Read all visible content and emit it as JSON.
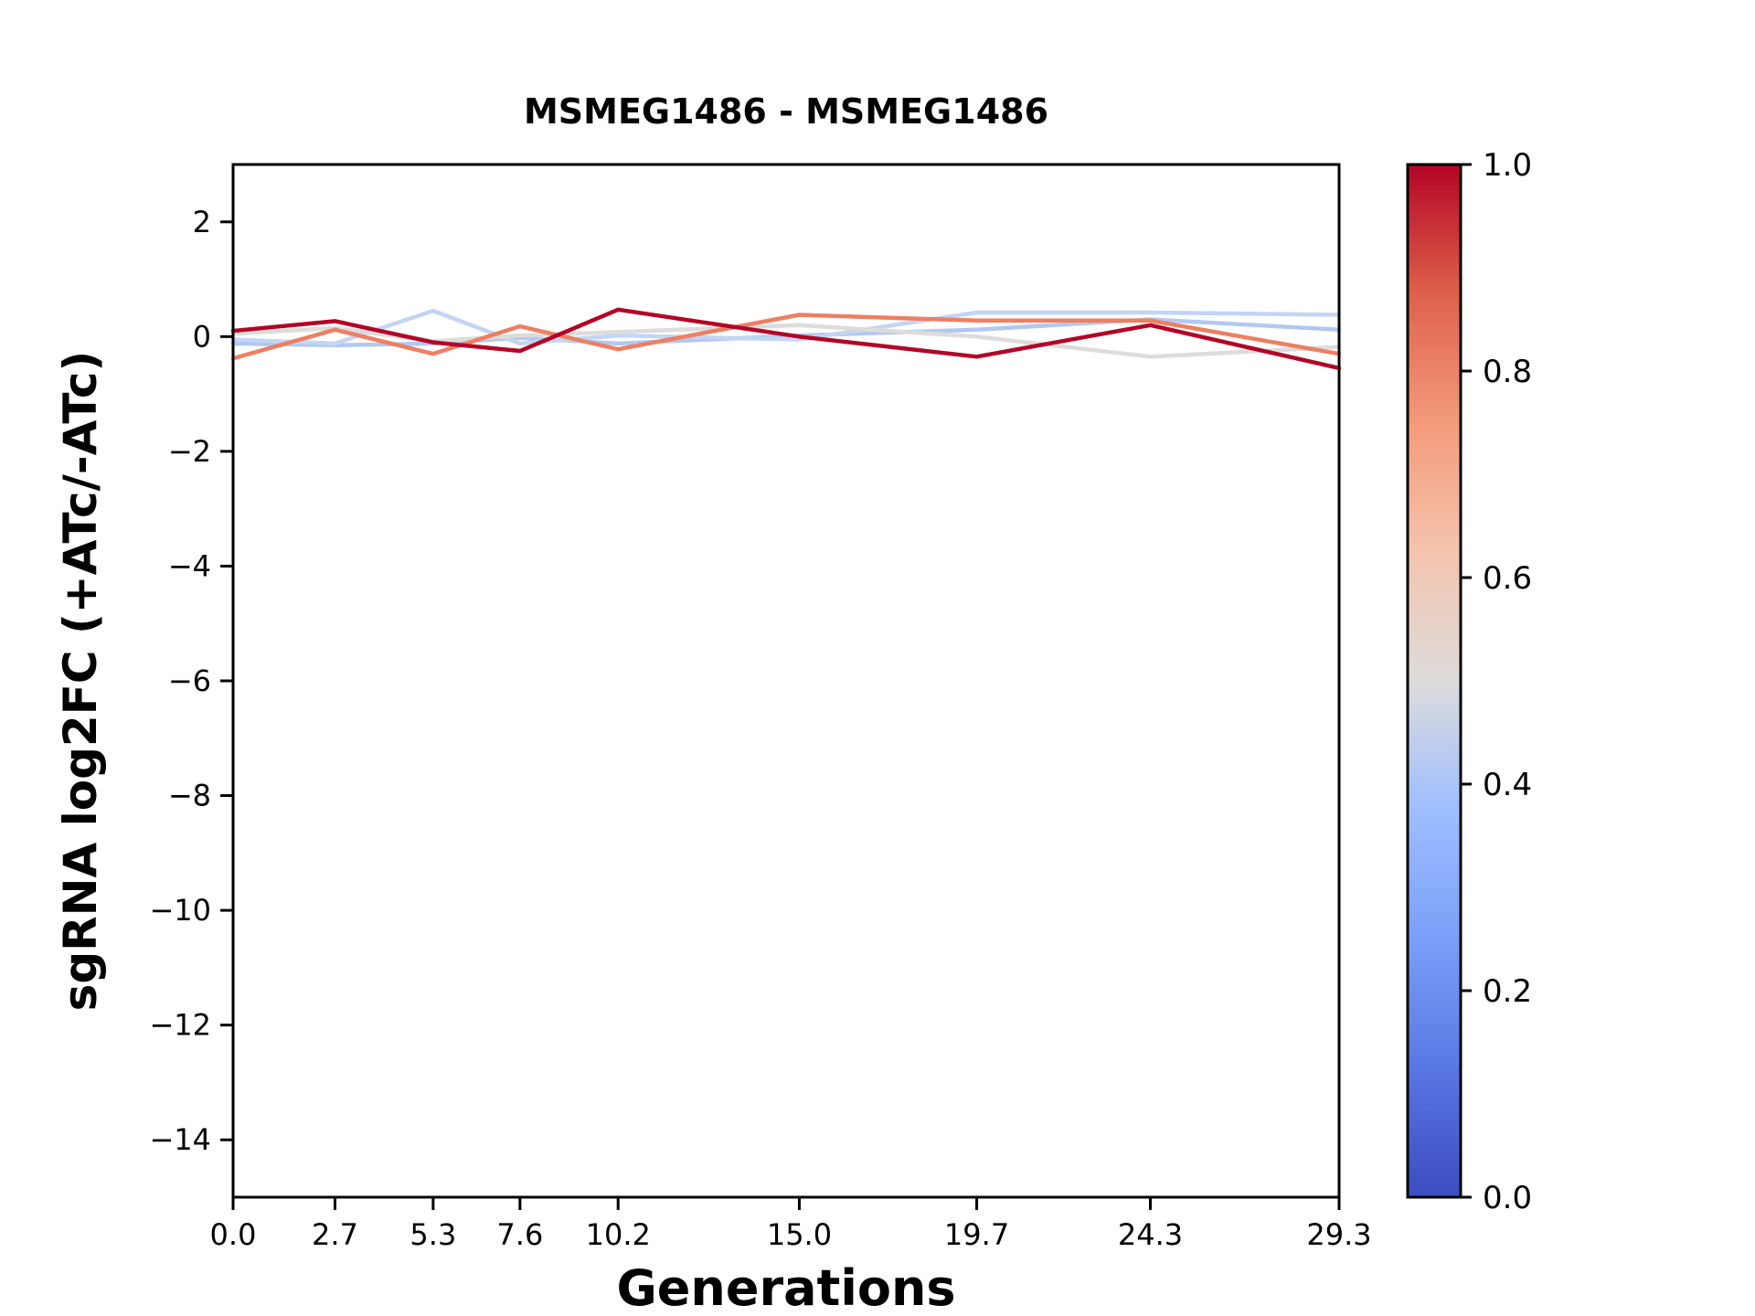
{
  "chart_data": {
    "type": "line",
    "title": "MSMEG1486 - MSMEG1486",
    "xlabel": "Generations",
    "ylabel": "sgRNA log2FC (+ATc/-ATc)",
    "x": [
      0.0,
      2.7,
      5.3,
      7.6,
      10.2,
      15.0,
      19.7,
      24.3,
      29.3
    ],
    "xtick_labels": [
      "0.0",
      "2.7",
      "5.3",
      "7.6",
      "10.2",
      "15.0",
      "19.7",
      "24.3",
      "29.3"
    ],
    "yticks": [
      2,
      0,
      -2,
      -4,
      -6,
      -8,
      -10,
      -12,
      -14
    ],
    "xlim": [
      0,
      29.3
    ],
    "ylim": [
      -15,
      3
    ],
    "grid": false,
    "legend": "none",
    "series": [
      {
        "color_value": 0.38,
        "color": "#b2c8f0",
        "values": [
          -0.12,
          -0.15,
          -0.12,
          -0.02,
          -0.12,
          0.02,
          0.12,
          0.3,
          0.12
        ]
      },
      {
        "color_value": 0.42,
        "color": "#c3d5f4",
        "values": [
          -0.05,
          -0.12,
          0.45,
          -0.12,
          0.02,
          -0.05,
          0.42,
          0.42,
          0.38
        ]
      },
      {
        "color_value": 0.5,
        "color": "#dddcdb",
        "values": [
          0.05,
          0.15,
          -0.08,
          0.02,
          0.08,
          0.2,
          0.0,
          -0.35,
          -0.18
        ]
      },
      {
        "color_value": 0.8,
        "color": "#ed7f62",
        "values": [
          -0.38,
          0.12,
          -0.3,
          0.18,
          -0.22,
          0.38,
          0.28,
          0.28,
          -0.3
        ]
      },
      {
        "color_value": 1.0,
        "color": "#b40426",
        "values": [
          0.1,
          0.27,
          -0.1,
          -0.25,
          0.47,
          0.0,
          -0.35,
          0.2,
          -0.55
        ]
      }
    ],
    "colorbar": {
      "cmap": "coolwarm",
      "min": 0.0,
      "max": 1.0,
      "ticks": [
        "1.0",
        "0.8",
        "0.6",
        "0.4",
        "0.2",
        "0.0"
      ],
      "gradient_stops": [
        {
          "pos": 0.0,
          "color": "#3b4cc0"
        },
        {
          "pos": 0.125,
          "color": "#5977e3"
        },
        {
          "pos": 0.25,
          "color": "#7b9ff9"
        },
        {
          "pos": 0.375,
          "color": "#9ebeff"
        },
        {
          "pos": 0.5,
          "color": "#dddcdb"
        },
        {
          "pos": 0.625,
          "color": "#f4c4ad"
        },
        {
          "pos": 0.75,
          "color": "#f49a7b"
        },
        {
          "pos": 0.875,
          "color": "#de614a"
        },
        {
          "pos": 1.0,
          "color": "#b40426"
        }
      ]
    }
  }
}
